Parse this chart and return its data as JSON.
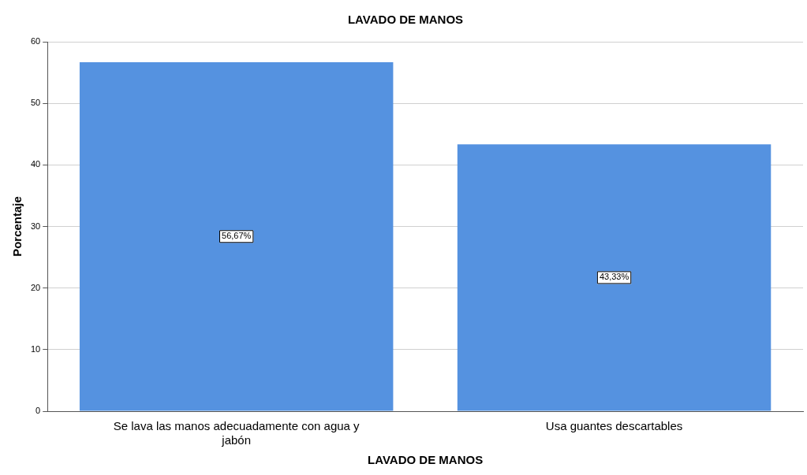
{
  "chart_data": {
    "type": "bar",
    "title": "LAVADO DE MANOS",
    "xlabel": "LAVADO DE MANOS",
    "ylabel": "Porcentaje",
    "categories": [
      "Se lava las manos adecuadamente con agua y jabón",
      "Usa guantes descartables"
    ],
    "values": [
      56.67,
      43.33
    ],
    "color": "#5592e0",
    "value_labels": [
      "56,67%",
      "43,33%"
    ],
    "ylim": [
      0,
      60
    ],
    "yticks": [
      0,
      10,
      20,
      30,
      40,
      50,
      60
    ],
    "grid": "y",
    "legend": false
  }
}
